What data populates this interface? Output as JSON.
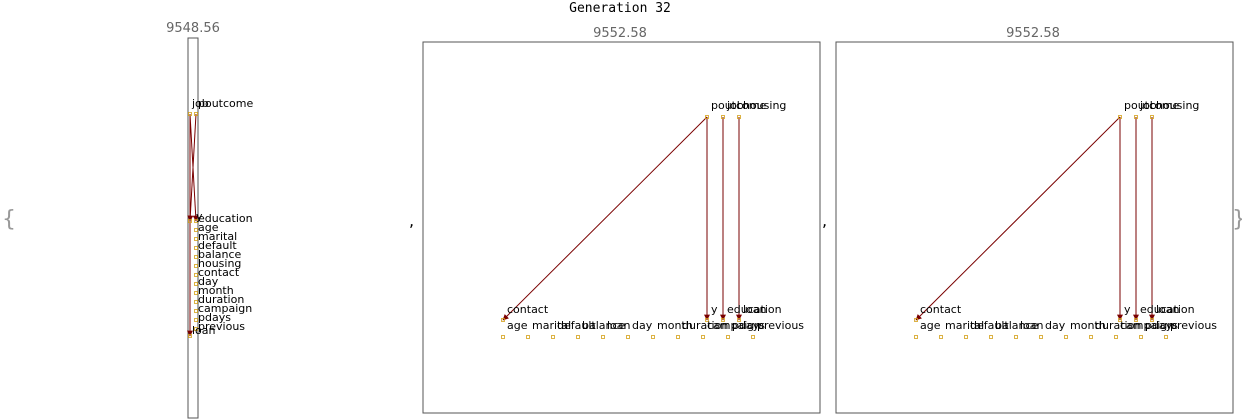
{
  "title": "Generation 32",
  "open_brace": "{",
  "close_brace": "}",
  "separators": [
    ",",
    ","
  ],
  "colors": {
    "edge": "#7a0000",
    "node": "#d4a017",
    "frame": "#555555",
    "score": "#666666",
    "label": "#000000"
  },
  "panels": [
    {
      "score": "9548.56",
      "nodes": [
        {
          "label": "job"
        },
        {
          "label": "poutcome"
        },
        {
          "label": "education"
        },
        {
          "label": "y"
        },
        {
          "label": "age"
        },
        {
          "label": "marital"
        },
        {
          "label": "default"
        },
        {
          "label": "balance"
        },
        {
          "label": "housing"
        },
        {
          "label": "contact"
        },
        {
          "label": "day"
        },
        {
          "label": "month"
        },
        {
          "label": "duration"
        },
        {
          "label": "campaign"
        },
        {
          "label": "pdays"
        },
        {
          "label": "previous"
        },
        {
          "label": "loan"
        }
      ],
      "edges": [
        {
          "from": "job",
          "to": "education"
        },
        {
          "from": "poutcome",
          "to": "y"
        },
        {
          "from": "job",
          "to": "loan"
        }
      ]
    },
    {
      "score": "9552.58",
      "nodes": [
        {
          "label": "poutcome"
        },
        {
          "label": "job"
        },
        {
          "label": "housing"
        },
        {
          "label": "contact"
        },
        {
          "label": "y"
        },
        {
          "label": "education"
        },
        {
          "label": "loan"
        },
        {
          "label": "age"
        },
        {
          "label": "marital"
        },
        {
          "label": "default"
        },
        {
          "label": "balance"
        },
        {
          "label": "loan"
        },
        {
          "label": "day"
        },
        {
          "label": "month"
        },
        {
          "label": "duration"
        },
        {
          "label": "campaign"
        },
        {
          "label": "pdays"
        },
        {
          "label": "previous"
        }
      ],
      "edges": [
        {
          "from": "poutcome",
          "to": "contact"
        },
        {
          "from": "poutcome",
          "to": "y"
        },
        {
          "from": "job",
          "to": "education"
        },
        {
          "from": "housing",
          "to": "loan"
        }
      ]
    },
    {
      "score": "9552.58",
      "nodes": [
        {
          "label": "poutcome"
        },
        {
          "label": "job"
        },
        {
          "label": "housing"
        },
        {
          "label": "contact"
        },
        {
          "label": "y"
        },
        {
          "label": "education"
        },
        {
          "label": "loan"
        },
        {
          "label": "age"
        },
        {
          "label": "marital"
        },
        {
          "label": "default"
        },
        {
          "label": "balance"
        },
        {
          "label": "loan"
        },
        {
          "label": "day"
        },
        {
          "label": "month"
        },
        {
          "label": "duration"
        },
        {
          "label": "campaign"
        },
        {
          "label": "pdays"
        },
        {
          "label": "previous"
        }
      ],
      "edges": [
        {
          "from": "poutcome",
          "to": "contact"
        },
        {
          "from": "poutcome",
          "to": "y"
        },
        {
          "from": "job",
          "to": "education"
        },
        {
          "from": "housing",
          "to": "loan"
        }
      ]
    }
  ]
}
